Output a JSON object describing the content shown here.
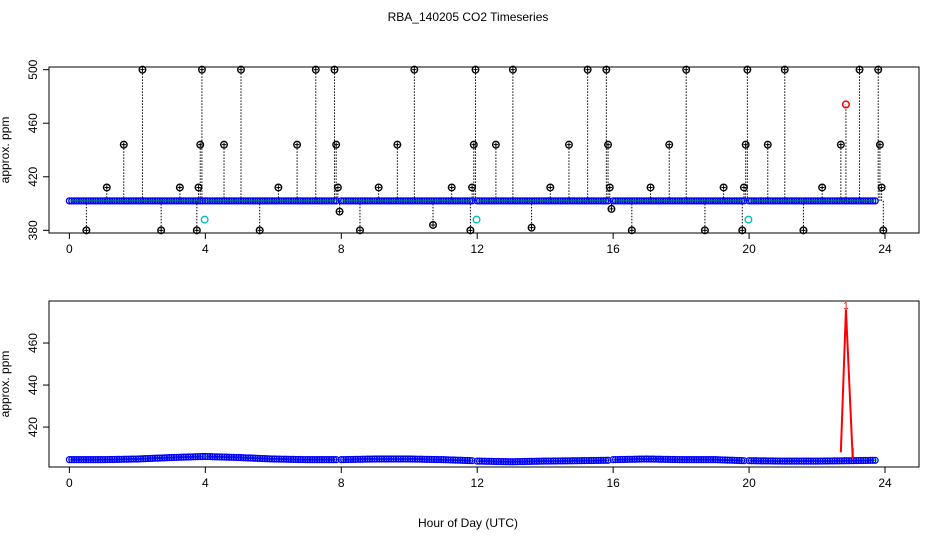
{
  "page": {
    "title": "RBA_140205  CO2 Timeseries",
    "xlabel": "Hour of Day (UTC)"
  },
  "colors": {
    "frame": "#000000",
    "raw_point": "#000000",
    "point_blue": "#0000ff",
    "point_green": "#00cc00",
    "point_cyan": "#00bfbf",
    "highlight_red": "#ff0000"
  },
  "chart_data": [
    {
      "type": "scatter",
      "name": "upper",
      "ylabel": "approx. ppm",
      "xlim": [
        -0.6,
        25.0
      ],
      "ylim": [
        378,
        502
      ],
      "xticks": [
        0,
        4,
        8,
        12,
        16,
        20,
        24
      ],
      "yticks": [
        380,
        420,
        460,
        500
      ],
      "baseline": 402,
      "baseline_segments": [
        [
          0.0,
          3.95
        ],
        [
          4.0,
          7.9
        ],
        [
          8.0,
          11.85
        ],
        [
          12.0,
          15.85
        ],
        [
          16.0,
          19.85
        ],
        [
          20.0,
          23.75
        ]
      ],
      "spikes": [
        [
          0.5,
          380
        ],
        [
          1.1,
          412
        ],
        [
          1.6,
          444
        ],
        [
          2.15,
          500
        ],
        [
          2.7,
          380
        ],
        [
          3.25,
          412
        ],
        [
          3.75,
          380
        ],
        [
          3.8,
          412
        ],
        [
          3.85,
          444
        ],
        [
          3.9,
          500
        ],
        [
          4.55,
          444
        ],
        [
          5.05,
          500
        ],
        [
          5.6,
          380
        ],
        [
          6.15,
          412
        ],
        [
          6.7,
          444
        ],
        [
          7.25,
          500
        ],
        [
          7.8,
          500
        ],
        [
          7.85,
          444
        ],
        [
          7.9,
          412
        ],
        [
          7.95,
          394
        ],
        [
          8.55,
          380
        ],
        [
          9.1,
          412
        ],
        [
          9.65,
          444
        ],
        [
          10.15,
          500
        ],
        [
          10.7,
          384
        ],
        [
          11.25,
          412
        ],
        [
          11.8,
          380
        ],
        [
          11.85,
          412
        ],
        [
          11.9,
          444
        ],
        [
          11.95,
          500
        ],
        [
          12.55,
          444
        ],
        [
          13.05,
          500
        ],
        [
          13.6,
          382
        ],
        [
          14.15,
          412
        ],
        [
          14.7,
          444
        ],
        [
          15.25,
          500
        ],
        [
          15.8,
          500
        ],
        [
          15.85,
          444
        ],
        [
          15.9,
          412
        ],
        [
          15.95,
          396
        ],
        [
          16.55,
          380
        ],
        [
          17.1,
          412
        ],
        [
          17.65,
          444
        ],
        [
          18.15,
          500
        ],
        [
          18.7,
          380
        ],
        [
          19.25,
          412
        ],
        [
          19.8,
          380
        ],
        [
          19.85,
          412
        ],
        [
          19.9,
          444
        ],
        [
          19.95,
          500
        ],
        [
          20.55,
          444
        ],
        [
          21.05,
          500
        ],
        [
          21.6,
          380
        ],
        [
          22.15,
          412
        ],
        [
          22.7,
          444
        ],
        [
          23.25,
          500
        ],
        [
          23.8,
          500
        ],
        [
          23.85,
          444
        ],
        [
          23.9,
          412
        ],
        [
          23.95,
          380
        ]
      ],
      "cyan_points": [
        [
          3.98,
          388
        ],
        [
          11.98,
          388
        ],
        [
          19.98,
          388
        ]
      ],
      "red_points": [
        [
          22.85,
          474
        ]
      ]
    },
    {
      "type": "line",
      "name": "lower",
      "ylabel": "approx. ppm",
      "xlim": [
        -0.6,
        25.0
      ],
      "ylim": [
        401,
        480
      ],
      "xticks": [
        0,
        4,
        8,
        12,
        16,
        20,
        24
      ],
      "yticks": [
        420,
        440,
        460
      ],
      "segments": [
        {
          "x": [
            0.0,
            1.0,
            2.0,
            3.0,
            3.95
          ],
          "y": [
            404.5,
            404.5,
            404.8,
            405.5,
            406.0
          ]
        },
        {
          "x": [
            4.0,
            5.0,
            6.0,
            7.0,
            7.9
          ],
          "y": [
            406.0,
            405.5,
            404.8,
            404.5,
            404.5
          ]
        },
        {
          "x": [
            8.0,
            9.0,
            10.0,
            11.0,
            11.85
          ],
          "y": [
            404.5,
            404.8,
            404.8,
            404.5,
            404.0
          ]
        },
        {
          "x": [
            12.0,
            13.0,
            14.0,
            15.0,
            15.85
          ],
          "y": [
            403.8,
            403.5,
            403.8,
            404.0,
            404.2
          ]
        },
        {
          "x": [
            16.0,
            17.0,
            18.0,
            19.0,
            19.85
          ],
          "y": [
            404.5,
            404.8,
            404.5,
            404.5,
            404.0
          ]
        },
        {
          "x": [
            20.0,
            21.0,
            22.0,
            23.0,
            23.75
          ],
          "y": [
            404.0,
            403.8,
            403.8,
            404.0,
            404.2
          ]
        }
      ],
      "red_spike": {
        "x": [
          22.7,
          22.85,
          23.05
        ],
        "y": [
          408,
          476,
          405
        ]
      },
      "red_marker": {
        "x": 22.85,
        "y": 478,
        "label": "1"
      }
    }
  ]
}
